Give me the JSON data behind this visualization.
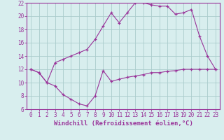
{
  "xlabel": "Windchill (Refroidissement éolien,°C)",
  "x": [
    0,
    1,
    2,
    3,
    4,
    5,
    6,
    7,
    8,
    9,
    10,
    11,
    12,
    13,
    14,
    15,
    16,
    17,
    18,
    19,
    20,
    21,
    22,
    23
  ],
  "line1": [
    12,
    11.5,
    10,
    9.5,
    8.2,
    7.5,
    6.8,
    6.5,
    8.0,
    11.8,
    10.2,
    10.5,
    10.8,
    11.0,
    11.2,
    11.5,
    11.5,
    11.7,
    11.8,
    12.0,
    12.0,
    12.0,
    12.0,
    12.0
  ],
  "line2": [
    12,
    11.5,
    10,
    13.0,
    13.5,
    14.0,
    14.5,
    15.0,
    16.5,
    18.5,
    20.5,
    19.0,
    20.5,
    22.0,
    22.0,
    21.7,
    21.5,
    21.5,
    20.3,
    20.5,
    21.0,
    17.0,
    14.0,
    12.0
  ],
  "line_color": "#993399",
  "bg_color": "#d8eeee",
  "grid_color": "#aacccc",
  "ylim": [
    6,
    22
  ],
  "xlim_min": -0.5,
  "xlim_max": 23.5,
  "yticks": [
    6,
    8,
    10,
    12,
    14,
    16,
    18,
    20,
    22
  ],
  "xticks": [
    0,
    1,
    2,
    3,
    4,
    5,
    6,
    7,
    8,
    9,
    10,
    11,
    12,
    13,
    14,
    15,
    16,
    17,
    18,
    19,
    20,
    21,
    22,
    23
  ],
  "xlabel_fontsize": 6.5,
  "tick_fontsize": 5.5
}
